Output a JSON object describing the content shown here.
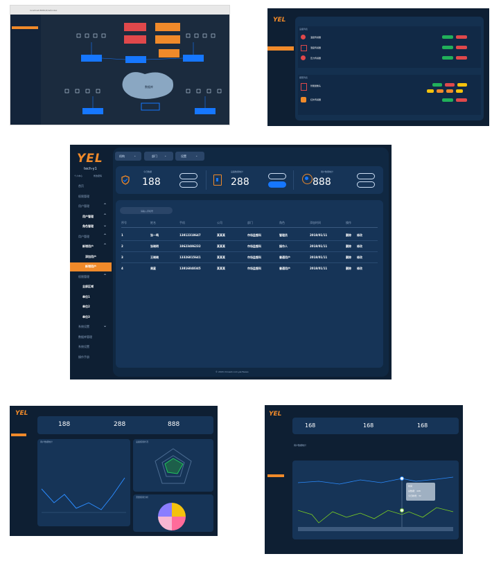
{
  "mock1": {
    "browser_url": "localhost:8080/#/wf/index",
    "center_label": "数据库",
    "nodes": [
      "规则引擎",
      "告警中心",
      "数据采集",
      "数据存储"
    ]
  },
  "mock2": {
    "logo": "YEL",
    "sections": [
      "设备列表",
      "报警列表"
    ],
    "row_labels": [
      "温度传感器",
      "湿度传感器",
      "压力传感器",
      "智能摄像头",
      "红外传感器"
    ]
  },
  "main": {
    "logo": "YEL",
    "user": "tech-y1",
    "user_links": [
      "个人中心",
      "修改密码"
    ],
    "topnav": [
      "机构",
      "部门",
      "设置"
    ],
    "sidebar": [
      {
        "label": "首页",
        "level": 1
      },
      {
        "label": "权限管理",
        "level": 1
      },
      {
        "label": "用户管理",
        "level": 1,
        "expand": "^"
      },
      {
        "label": "用户管理",
        "level": 2,
        "expand": "^"
      },
      {
        "label": "角色管理",
        "level": 2,
        "expand": "v"
      },
      {
        "label": "用户管理",
        "level": 1,
        "expand": "^"
      },
      {
        "label": "新增用户",
        "level": 2,
        "expand": "^"
      },
      {
        "label": "添加用户",
        "level": 3
      },
      {
        "label": "新增用户",
        "level": 3,
        "active": true
      },
      {
        "label": "权限管理",
        "level": 1,
        "expand": "^"
      },
      {
        "label": "全部区域",
        "level": 2
      },
      {
        "label": "单位1",
        "level": 2
      },
      {
        "label": "单位2",
        "level": 2
      },
      {
        "label": "单位3",
        "level": 2
      },
      {
        "label": "系统设置",
        "level": 1,
        "expand": "v"
      },
      {
        "label": "数据库管理",
        "level": 1
      },
      {
        "label": "系统设置",
        "level": 1
      },
      {
        "label": "操作手册",
        "level": 1
      }
    ],
    "stats": [
      {
        "label": "今日数据",
        "value": "188"
      },
      {
        "label": "设备数量统计",
        "value": "288"
      },
      {
        "label": "用户数量统计",
        "value": "888"
      }
    ],
    "search_placeholder": "请输入手机号",
    "table": {
      "headers": [
        "序号",
        "姓名",
        "手机",
        "公司",
        "部门",
        "角色",
        "添加时间",
        "操作"
      ],
      "rows": [
        [
          "1",
          "张一鸣",
          "13812318647",
          "某某某",
          "市场监督科",
          "管理员",
          "2018/01/11",
          "删除",
          "修改"
        ],
        [
          "2",
          "张晓明",
          "18623486232",
          "某某某",
          "市场监督科",
          "操作人",
          "2018/01/11",
          "删除",
          "修改"
        ],
        [
          "3",
          "王晓晓",
          "13326815641",
          "某某某",
          "市场监督科",
          "普通用户",
          "2018/01/11",
          "删除",
          "修改"
        ],
        [
          "4",
          "周星",
          "13816848345",
          "某某某",
          "市场监督科",
          "普通用户",
          "2018/01/11",
          "删除",
          "修改"
        ]
      ]
    },
    "footer": "© 2018 chinaiot.com.yel.Fasiao"
  },
  "mock3": {
    "logo": "YEL",
    "stats": [
      "188",
      "288",
      "888"
    ],
    "panels": [
      "用户数据统计",
      "设备使用状况",
      "流量使用分析"
    ]
  },
  "mock4": {
    "logo": "YEL",
    "stats": [
      "168",
      "168",
      "168"
    ],
    "panel_title": "用户数据统计",
    "tooltip": [
      "时间",
      "总数据：498",
      "今日新增：32"
    ]
  },
  "colors": {
    "bg": "#0e1f33",
    "panel": "#0f2c4c",
    "accent_orange": "#f08a2a",
    "accent_blue": "#1677ff"
  }
}
